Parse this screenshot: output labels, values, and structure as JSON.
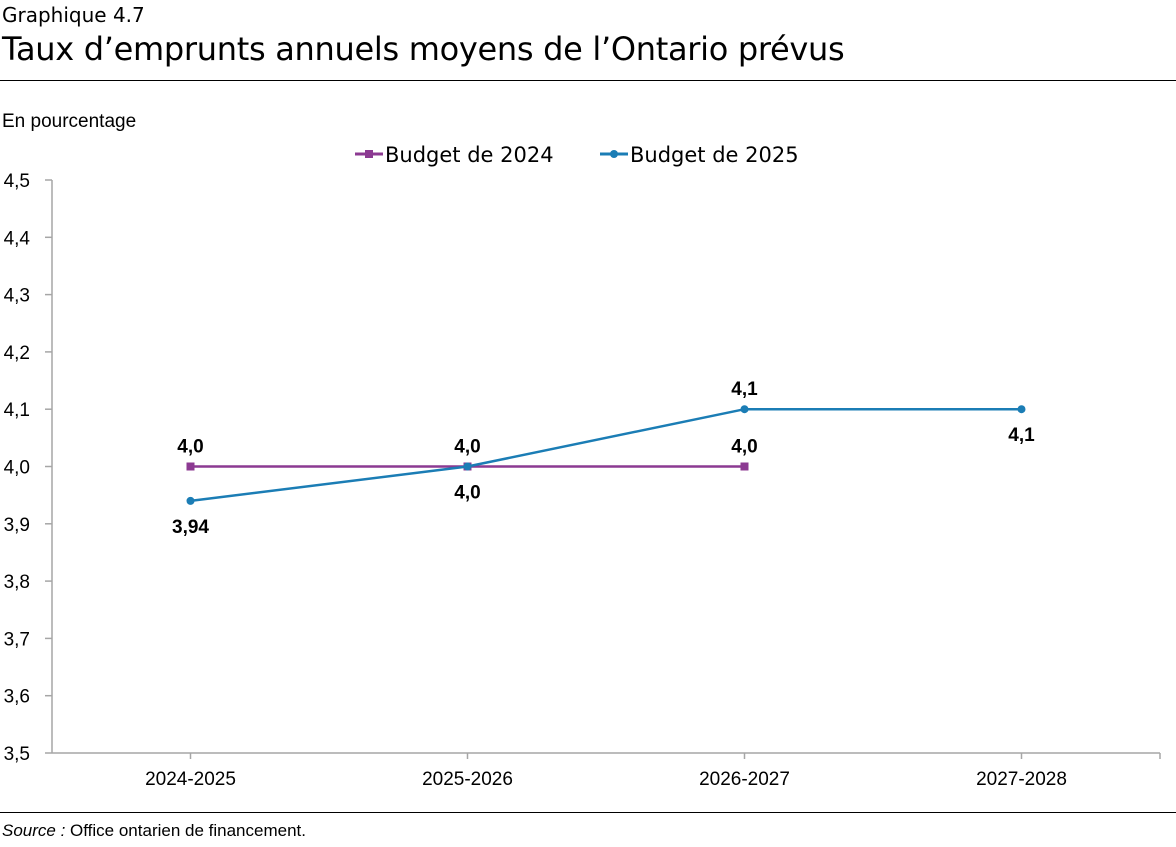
{
  "header": {
    "subtitle": "Graphique 4.7",
    "title": "Taux d’emprunts annuels moyens de l’Ontario prévus"
  },
  "footer": {
    "source_label": "Source :",
    "source_text": " Office ontarien de financement."
  },
  "chart_data": {
    "type": "line",
    "title": "Taux d’emprunts annuels moyens de l’Ontario prévus",
    "ylabel": "En pourcentage",
    "xlabel": "",
    "categories": [
      "2024-2025",
      "2025-2026",
      "2026-2027",
      "2027-2028"
    ],
    "ylim": [
      3.5,
      4.5
    ],
    "yticks": [
      "3,5",
      "3,6",
      "3,7",
      "3,8",
      "3,9",
      "4,0",
      "4,1",
      "4,2",
      "4,3",
      "4,4",
      "4,5"
    ],
    "grid": false,
    "legend_position": "top",
    "series": [
      {
        "name": "Budget de 2024",
        "color": "#8C3A92",
        "marker": "square",
        "values": [
          4.0,
          4.0,
          4.0,
          null
        ],
        "labels": [
          "4,0",
          "4,0",
          "4,0",
          null
        ],
        "label_positions": [
          "above",
          "above",
          "above",
          null
        ]
      },
      {
        "name": "Budget de 2025",
        "color": "#1B7DB5",
        "marker": "circle",
        "values": [
          3.94,
          4.0,
          4.1,
          4.1
        ],
        "labels": [
          "3,94",
          "4,0",
          "4,1",
          "4,1"
        ],
        "label_positions": [
          "below",
          "below",
          "above",
          "below"
        ]
      }
    ]
  }
}
